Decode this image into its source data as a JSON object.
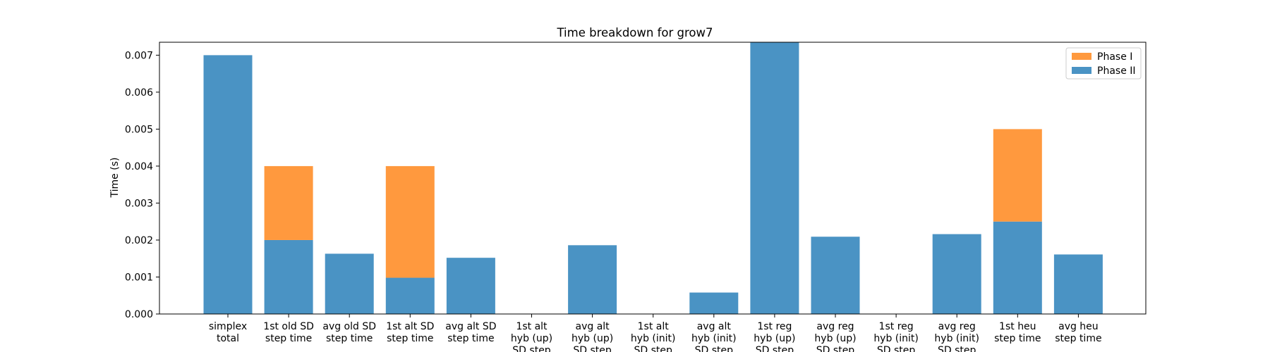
{
  "chart_data": {
    "type": "bar",
    "stacked": true,
    "title": "Time breakdown for grow7",
    "xlabel": "",
    "ylabel": "Time (s)",
    "ylim": [
      0,
      0.00735
    ],
    "yticks": [
      "0.000",
      "0.001",
      "0.002",
      "0.003",
      "0.004",
      "0.005",
      "0.006",
      "0.007"
    ],
    "ytick_values": [
      0,
      0.001,
      0.002,
      0.003,
      0.004,
      0.005,
      0.006,
      0.007
    ],
    "grid": false,
    "legend_position": "top-right",
    "categories": [
      [
        "simplex",
        "total"
      ],
      [
        "1st old SD",
        "step time"
      ],
      [
        "avg old SD",
        "step time"
      ],
      [
        "1st alt SD",
        "step time"
      ],
      [
        "avg alt SD",
        "step time"
      ],
      [
        "1st alt",
        "hyb (up)",
        "SD step"
      ],
      [
        "avg alt",
        "hyb (up)",
        "SD step"
      ],
      [
        "1st alt",
        "hyb (init)",
        "SD step"
      ],
      [
        "avg alt",
        "hyb (init)",
        "SD step"
      ],
      [
        "1st reg",
        "hyb (up)",
        "SD step"
      ],
      [
        "avg reg",
        "hyb (up)",
        "SD step"
      ],
      [
        "1st reg",
        "hyb (init)",
        "SD step"
      ],
      [
        "avg reg",
        "hyb (init)",
        "SD step"
      ],
      [
        "1st heu",
        "step time"
      ],
      [
        "avg heu",
        "step time"
      ]
    ],
    "series": [
      {
        "name": "Phase II",
        "color": "#4a93c4",
        "values": [
          0.007,
          0.002,
          0.00163,
          0.00098,
          0.00152,
          0,
          0.00186,
          0,
          0.00058,
          0.0074,
          0.00209,
          0,
          0.00216,
          0.0025,
          0.00161
        ]
      },
      {
        "name": "Phase I",
        "color": "#ff993e",
        "values": [
          0,
          0.002,
          0,
          0.00302,
          0,
          0,
          0,
          0,
          0,
          0,
          0,
          0,
          0,
          0.0025,
          0
        ]
      }
    ],
    "legend": [
      "Phase I",
      "Phase II"
    ]
  }
}
